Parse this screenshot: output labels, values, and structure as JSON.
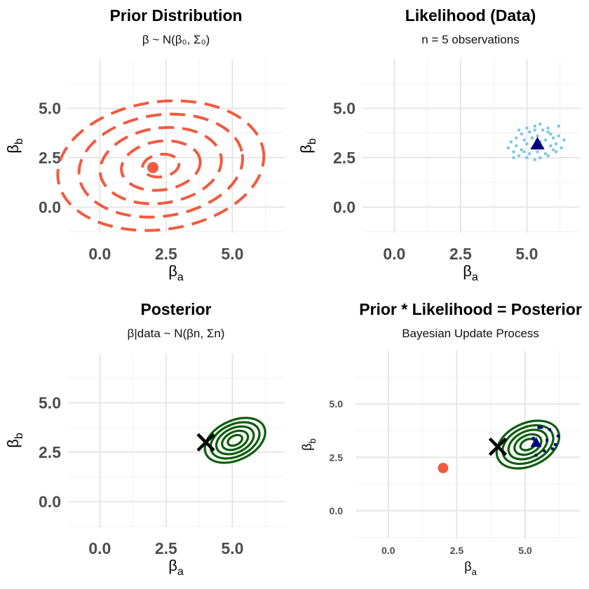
{
  "chart_data": [
    {
      "type": "contour",
      "title": "Prior Distribution",
      "subtitle": "β ~ N(β₀, Σ₀)",
      "xlabel": "βa",
      "ylabel": "βb",
      "xlim": [
        -1.2,
        7.0
      ],
      "ylim": [
        -1.3,
        7.5
      ],
      "x_ticks": [
        "0.0",
        "2.5",
        "5.0"
      ],
      "y_ticks": [
        "0.0",
        "2.5",
        "5.0"
      ],
      "grid": true,
      "mean": {
        "x": 2.0,
        "y": 2.0
      },
      "contour_radii": [
        0.6,
        1.3,
        2.0,
        2.7,
        3.4
      ],
      "contour_center": {
        "x": 2.3,
        "y": 2.1
      },
      "contour_style": "dashed",
      "color": "#F25A3F"
    },
    {
      "type": "scatter",
      "title": "Likelihood (Data)",
      "subtitle": "n = 5 observations",
      "xlabel": "βa",
      "ylabel": "βb",
      "xlim": [
        -1.2,
        7.0
      ],
      "ylim": [
        -1.3,
        7.5
      ],
      "x_ticks": [
        "0.0",
        "2.5",
        "5.0"
      ],
      "y_ticks": [
        "0.0",
        "2.5",
        "5.0"
      ],
      "grid": true,
      "mle": {
        "x": 5.4,
        "y": 3.2
      },
      "points": [
        [
          4.3,
          3.0
        ],
        [
          4.4,
          3.3
        ],
        [
          4.5,
          2.8
        ],
        [
          4.6,
          3.5
        ],
        [
          4.6,
          3.1
        ],
        [
          4.7,
          2.6
        ],
        [
          4.8,
          3.7
        ],
        [
          4.8,
          2.9
        ],
        [
          4.9,
          3.4
        ],
        [
          5.0,
          2.5
        ],
        [
          5.0,
          3.2
        ],
        [
          5.1,
          3.8
        ],
        [
          5.1,
          2.7
        ],
        [
          5.2,
          3.5
        ],
        [
          5.2,
          3.0
        ],
        [
          5.3,
          2.4
        ],
        [
          5.3,
          4.1
        ],
        [
          5.4,
          2.8
        ],
        [
          5.4,
          3.6
        ],
        [
          5.5,
          4.2
        ],
        [
          5.5,
          2.5
        ],
        [
          5.6,
          3.9
        ],
        [
          5.6,
          3.0
        ],
        [
          5.7,
          2.7
        ],
        [
          5.7,
          3.4
        ],
        [
          5.8,
          4.0
        ],
        [
          5.8,
          2.6
        ],
        [
          5.9,
          3.7
        ],
        [
          5.9,
          3.1
        ],
        [
          6.0,
          2.9
        ],
        [
          6.0,
          3.5
        ],
        [
          6.1,
          3.2
        ],
        [
          6.1,
          2.8
        ],
        [
          6.2,
          3.6
        ],
        [
          6.3,
          3.0
        ],
        [
          6.4,
          3.4
        ],
        [
          5.0,
          4.0
        ],
        [
          4.7,
          3.9
        ],
        [
          6.2,
          4.1
        ],
        [
          4.5,
          2.5
        ],
        [
          5.5,
          3.3
        ],
        [
          5.3,
          3.9
        ],
        [
          4.9,
          2.8
        ],
        [
          5.8,
          3.8
        ]
      ],
      "point_color": "#7EC8E3",
      "mle_color": "#000080"
    },
    {
      "type": "contour",
      "title": "Posterior",
      "subtitle": "β|data ~ N(βn, Σn)",
      "xlabel": "βa",
      "ylabel": "βb",
      "xlim": [
        -1.2,
        7.0
      ],
      "ylim": [
        -1.3,
        7.5
      ],
      "x_ticks": [
        "0.0",
        "2.5",
        "5.0"
      ],
      "y_ticks": [
        "0.0",
        "2.5",
        "5.0"
      ],
      "grid": true,
      "contour_center": {
        "x": 5.1,
        "y": 3.1
      },
      "contour_radii": [
        0.25,
        0.45,
        0.65,
        0.85,
        1.05
      ],
      "color": "#0B5D0B",
      "marker_x": {
        "x": 4.0,
        "y": 3.0
      }
    },
    {
      "type": "composite",
      "title": "Prior * Likelihood = Posterior",
      "subtitle": "Bayesian Update Process",
      "xlabel": "βa",
      "ylabel": "βb",
      "xlim": [
        -1.2,
        7.0
      ],
      "ylim": [
        -1.3,
        7.5
      ],
      "x_ticks": [
        "0.0",
        "2.5",
        "5.0"
      ],
      "y_ticks": [
        "0.0",
        "2.5",
        "5.0"
      ],
      "grid": true,
      "prior_mean": {
        "x": 2.0,
        "y": 2.0
      },
      "mle": {
        "x": 5.4,
        "y": 3.2
      },
      "marker_x": {
        "x": 4.0,
        "y": 3.0
      },
      "contour_center": {
        "x": 5.1,
        "y": 3.1
      },
      "contour_radii": [
        0.25,
        0.45,
        0.65,
        0.85,
        1.05
      ],
      "likelihood_points": [
        [
          5.5,
          3.9
        ],
        [
          5.6,
          3.9
        ],
        [
          5.9,
          3.8
        ],
        [
          6.2,
          3.5
        ],
        [
          6.0,
          2.9
        ],
        [
          5.7,
          2.8
        ],
        [
          5.4,
          2.6
        ],
        [
          5.3,
          3.4
        ],
        [
          5.8,
          3.3
        ],
        [
          6.1,
          3.1
        ]
      ],
      "colors": {
        "prior": "#F25A3F",
        "posterior": "#0B5D0B",
        "likelihood": "#000080"
      }
    }
  ]
}
